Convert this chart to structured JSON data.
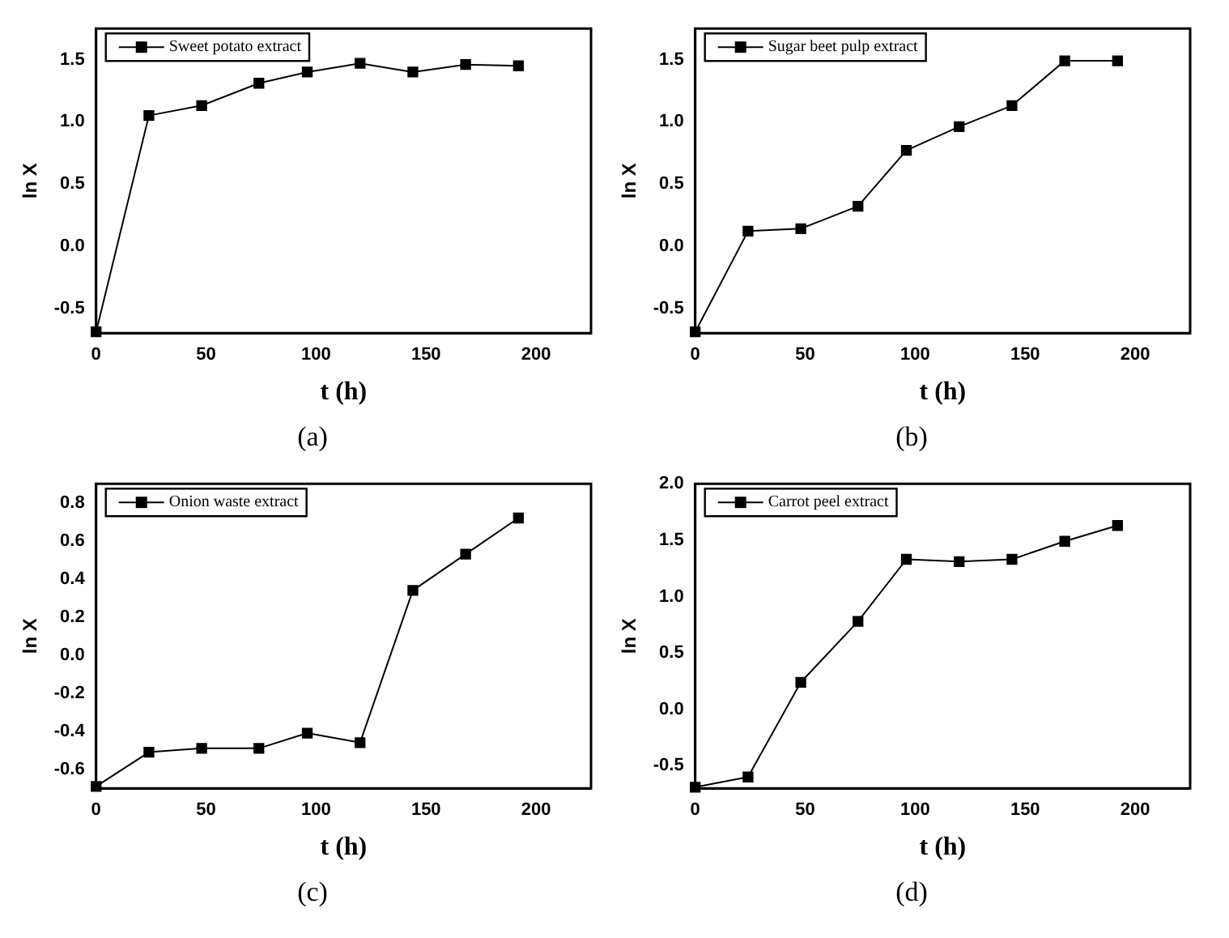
{
  "chart_data": [
    {
      "type": "line",
      "x": [
        0,
        24,
        48,
        74,
        96,
        120,
        144,
        168,
        192
      ],
      "xlabel": "t (h)",
      "ylabel": "ln X",
      "annotations": [
        "(a)"
      ],
      "legend": "top left",
      "marker": "square",
      "line_style": "solid",
      "series": [
        {
          "name": "Sweet potato extract",
          "color": "#000000",
          "values": [
            -0.69,
            1.05,
            1.13,
            1.31,
            1.4,
            1.47,
            1.4,
            1.46,
            1.45
          ]
        }
      ],
      "xlim": [
        0,
        225
      ],
      "xticks": [
        0,
        50,
        100,
        150,
        200
      ],
      "ylim": [
        -0.7,
        1.75
      ],
      "yticks": [
        -0.5,
        {
          "value": 0,
          "label": "0.0"
        },
        0.5,
        {
          "value": 1,
          "label": "1.0"
        },
        1.5
      ]
    },
    {
      "type": "line",
      "x": [
        0,
        24,
        48,
        74,
        96,
        120,
        144,
        168,
        192
      ],
      "xlabel": "t (h)",
      "ylabel": "ln X",
      "annotations": [
        "(b)"
      ],
      "legend": "top left",
      "marker": "square",
      "line_style": "solid",
      "series": [
        {
          "name": "Sugar beet pulp extract",
          "color": "#000000",
          "values": [
            -0.69,
            0.12,
            0.14,
            0.32,
            0.77,
            0.96,
            1.13,
            1.49,
            1.49
          ]
        }
      ],
      "xlim": [
        0,
        225
      ],
      "xticks": [
        0,
        50,
        100,
        150,
        200
      ],
      "ylim": [
        -0.7,
        1.75
      ],
      "yticks": [
        -0.5,
        {
          "value": 0,
          "label": "0.0"
        },
        0.5,
        {
          "value": 1,
          "label": "1.0"
        },
        1.5
      ]
    },
    {
      "type": "line",
      "x": [
        0,
        24,
        48,
        74,
        96,
        120,
        144,
        168,
        192
      ],
      "xlabel": "t (h)",
      "ylabel": "ln X",
      "annotations": [
        "(c)"
      ],
      "legend": "top left",
      "marker": "square",
      "line_style": "solid",
      "series": [
        {
          "name": "Onion waste extract",
          "color": "#000000",
          "values": [
            -0.69,
            -0.51,
            -0.49,
            -0.49,
            -0.41,
            -0.46,
            0.34,
            0.53,
            0.72
          ]
        }
      ],
      "xlim": [
        0,
        225
      ],
      "xticks": [
        0,
        50,
        100,
        150,
        200
      ],
      "ylim": [
        -0.7,
        0.9
      ],
      "yticks": [
        -0.6,
        -0.4,
        -0.2,
        {
          "value": 0,
          "label": "0.0"
        },
        0.2,
        0.4,
        0.6,
        0.8
      ]
    },
    {
      "type": "line",
      "x": [
        0,
        24,
        48,
        74,
        96,
        120,
        144,
        168,
        192
      ],
      "xlabel": "t (h)",
      "ylabel": "ln X",
      "annotations": [
        "(d)"
      ],
      "legend": "top left",
      "marker": "square",
      "line_style": "solid",
      "series": [
        {
          "name": "Carrot peel extract",
          "color": "#000000",
          "values": [
            -0.69,
            -0.6,
            0.24,
            0.78,
            1.33,
            1.31,
            1.33,
            1.49,
            1.63
          ]
        }
      ],
      "xlim": [
        0,
        225
      ],
      "xticks": [
        0,
        50,
        100,
        150,
        200
      ],
      "ylim": [
        -0.7,
        2.0
      ],
      "yticks": [
        -0.5,
        {
          "value": 0,
          "label": "0.0"
        },
        0.5,
        {
          "value": 1,
          "label": "1.0"
        },
        1.5,
        {
          "value": 2,
          "label": "2.0"
        }
      ]
    }
  ]
}
